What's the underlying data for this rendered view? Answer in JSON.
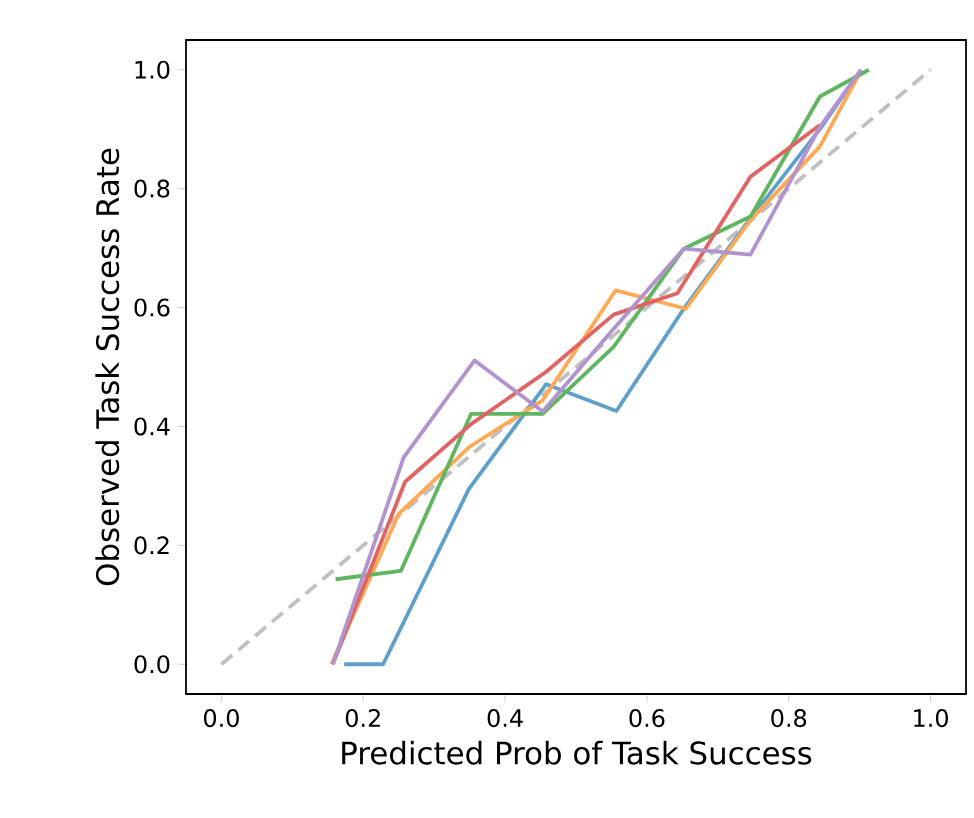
{
  "chart_data": {
    "type": "line",
    "xlabel": "Predicted Prob of Task Success",
    "ylabel": "Observed Task Success Rate",
    "xlim": [
      -0.05,
      1.05
    ],
    "ylim": [
      -0.05,
      1.05
    ],
    "xticks": [
      {
        "value": 0,
        "label": "0.0"
      },
      {
        "value": 0.2,
        "label": "0.2"
      },
      {
        "value": 0.4,
        "label": "0.4"
      },
      {
        "value": 0.6,
        "label": "0.6"
      },
      {
        "value": 0.8,
        "label": "0.8"
      },
      {
        "value": 1,
        "label": "1.0"
      }
    ],
    "yticks": [
      {
        "value": 0,
        "label": "0.0"
      },
      {
        "value": 0.2,
        "label": "0.2"
      },
      {
        "value": 0.4,
        "label": "0.4"
      },
      {
        "value": 0.6,
        "label": "0.6"
      },
      {
        "value": 0.8,
        "label": "0.8"
      },
      {
        "value": 1,
        "label": "1.0"
      }
    ],
    "grid": false,
    "marker": "none",
    "series": [
      {
        "color": "#c0c0c0",
        "line_style": "dashed",
        "x": [
          0,
          1
        ],
        "values": [
          0,
          1
        ]
      },
      {
        "color": "#5fa0ca",
        "x": [
          0.173,
          0.228,
          0.349,
          0.458,
          0.557,
          0.652,
          0.746,
          0.844,
          0.902
        ],
        "values": [
          0,
          0,
          0.295,
          0.471,
          0.426,
          0.598,
          0.75,
          0.9,
          1.0
        ]
      },
      {
        "color": "#ffa955",
        "x": [
          0.155,
          0.25,
          0.349,
          0.453,
          0.556,
          0.655,
          0.746,
          0.844,
          0.9
        ],
        "values": [
          0,
          0.253,
          0.365,
          0.444,
          0.629,
          0.598,
          0.747,
          0.871,
          0.994
        ]
      },
      {
        "color": "#60b660",
        "x": [
          0.161,
          0.253,
          0.352,
          0.453,
          0.553,
          0.652,
          0.746,
          0.844,
          0.913
        ],
        "values": [
          0.143,
          0.157,
          0.421,
          0.421,
          0.534,
          0.699,
          0.753,
          0.955,
          1.0
        ]
      },
      {
        "color": "#e06464",
        "x": [
          0.157,
          0.259,
          0.352,
          0.458,
          0.553,
          0.643,
          0.746,
          0.844
        ],
        "values": [
          0,
          0.307,
          0.404,
          0.492,
          0.588,
          0.624,
          0.82,
          0.907
        ]
      },
      {
        "color": "#b293cd",
        "x": [
          0.157,
          0.257,
          0.357,
          0.453,
          0.548,
          0.652,
          0.746,
          0.844,
          0.902
        ],
        "values": [
          0,
          0.348,
          0.511,
          0.425,
          0.557,
          0.699,
          0.689,
          0.904,
          1.0
        ]
      }
    ]
  }
}
